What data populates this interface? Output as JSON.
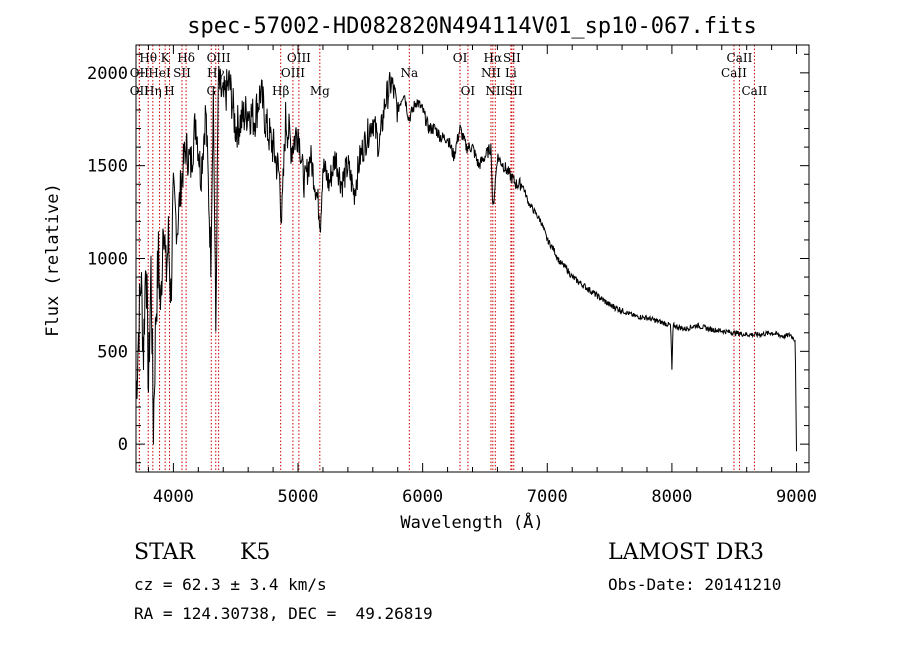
{
  "chart_data": {
    "type": "line",
    "title": "spec-57002-HD082820N494114V01_sp10-067.fits",
    "xlabel": "Wavelength (Å)",
    "ylabel": "Flux (relative)",
    "xlim": [
      3700,
      9100
    ],
    "ylim": [
      -150,
      2150
    ],
    "xticks": [
      4000,
      5000,
      6000,
      7000,
      8000,
      9000
    ],
    "yticks": [
      0,
      500,
      1000,
      1500,
      2000
    ],
    "xtick_labels": [
      "4000",
      "5000",
      "6000",
      "7000",
      "8000",
      "9000"
    ],
    "ytick_labels": [
      "0",
      "500",
      "1000",
      "1500",
      "2000"
    ],
    "line_color": "#000000",
    "marker_color": "#cc0000",
    "series": [
      {
        "name": "flux",
        "x": [
          3700,
          3720,
          3740,
          3760,
          3780,
          3800,
          3820,
          3840,
          3860,
          3880,
          3900,
          3920,
          3940,
          3960,
          3980,
          4000,
          4030,
          4060,
          4100,
          4140,
          4180,
          4220,
          4260,
          4300,
          4320,
          4340,
          4360,
          4400,
          4450,
          4500,
          4550,
          4600,
          4650,
          4700,
          4750,
          4800,
          4850,
          4870,
          4900,
          4950,
          5000,
          5050,
          5100,
          5150,
          5180,
          5200,
          5250,
          5300,
          5350,
          5400,
          5450,
          5500,
          5550,
          5600,
          5650,
          5700,
          5750,
          5800,
          5850,
          5890,
          5950,
          6000,
          6050,
          6100,
          6150,
          6200,
          6250,
          6300,
          6350,
          6400,
          6450,
          6500,
          6550,
          6563,
          6600,
          6650,
          6700,
          6750,
          6800,
          6850,
          6900,
          6950,
          7000,
          7050,
          7100,
          7150,
          7200,
          7300,
          7400,
          7500,
          7600,
          7700,
          7800,
          7900,
          7990,
          8000,
          8010,
          8100,
          8200,
          8300,
          8400,
          8500,
          8600,
          8700,
          8800,
          8900,
          8950,
          8990,
          9000
        ],
        "y": [
          250,
          600,
          900,
          500,
          1050,
          300,
          950,
          100,
          700,
          1000,
          700,
          1300,
          900,
          1100,
          800,
          1350,
          1150,
          1400,
          1600,
          1500,
          1750,
          1450,
          1800,
          1000,
          1900,
          600,
          1950,
          1850,
          1950,
          1700,
          1750,
          1800,
          1750,
          1900,
          1700,
          1600,
          1450,
          1200,
          1750,
          1600,
          1700,
          1400,
          1550,
          1350,
          1200,
          1500,
          1400,
          1550,
          1400,
          1500,
          1350,
          1550,
          1650,
          1750,
          1600,
          1850,
          1950,
          1800,
          1900,
          1750,
          1850,
          1800,
          1700,
          1700,
          1650,
          1650,
          1550,
          1700,
          1600,
          1600,
          1500,
          1550,
          1600,
          1250,
          1550,
          1500,
          1450,
          1400,
          1400,
          1300,
          1250,
          1200,
          1100,
          1050,
          980,
          950,
          900,
          850,
          800,
          750,
          720,
          690,
          680,
          660,
          640,
          400,
          640,
          620,
          640,
          620,
          610,
          600,
          590,
          590,
          600,
          580,
          590,
          560,
          -50
        ]
      }
    ],
    "lines": [
      {
        "label": "Hθ",
        "x": 3798,
        "row": 1
      },
      {
        "label": "OII",
        "x": 3727,
        "row": 2
      },
      {
        "label": "OII",
        "x": 3727,
        "row": 3
      },
      {
        "label": "K",
        "x": 3934,
        "row": 1
      },
      {
        "label": "Hδ",
        "x": 4102,
        "row": 1
      },
      {
        "label": "HeI",
        "x": 3889,
        "row": 2
      },
      {
        "label": "SII",
        "x": 4069,
        "row": 2
      },
      {
        "label": "Hη",
        "x": 3835,
        "row": 3
      },
      {
        "label": "H",
        "x": 3969,
        "row": 3
      },
      {
        "label": "OIII",
        "x": 4363,
        "row": 1
      },
      {
        "label": "Hγ",
        "x": 4340,
        "row": 2
      },
      {
        "label": "G",
        "x": 4304,
        "row": 3
      },
      {
        "label": "OIII",
        "x": 5007,
        "row": 1
      },
      {
        "label": "OIII",
        "x": 4959,
        "row": 2
      },
      {
        "label": "Hβ",
        "x": 4861,
        "row": 3
      },
      {
        "label": "Mg",
        "x": 5175,
        "row": 3
      },
      {
        "label": "Na",
        "x": 5893,
        "row": 2
      },
      {
        "label": "OI",
        "x": 6300,
        "row": 1
      },
      {
        "label": "OI",
        "x": 6363,
        "row": 3
      },
      {
        "label": "Hα",
        "x": 6563,
        "row": 1
      },
      {
        "label": "SII",
        "x": 6716,
        "row": 1
      },
      {
        "label": "NII",
        "x": 6548,
        "row": 2
      },
      {
        "label": "Li",
        "x": 6708,
        "row": 2
      },
      {
        "label": "NII",
        "x": 6583,
        "row": 3
      },
      {
        "label": "SII",
        "x": 6731,
        "row": 3
      },
      {
        "label": "CaII",
        "x": 8542,
        "row": 1
      },
      {
        "label": "CaII",
        "x": 8498,
        "row": 2
      },
      {
        "label": "CaII",
        "x": 8662,
        "row": 3
      }
    ]
  },
  "info": {
    "object_type": "STAR",
    "subclass": "K5",
    "survey": "LAMOST DR3",
    "cz": "cz = 62.3 ± 3.4 km/s",
    "obs_date": "Obs-Date: 20141210",
    "ra_dec": "RA = 124.30738, DEC =  49.26819"
  }
}
